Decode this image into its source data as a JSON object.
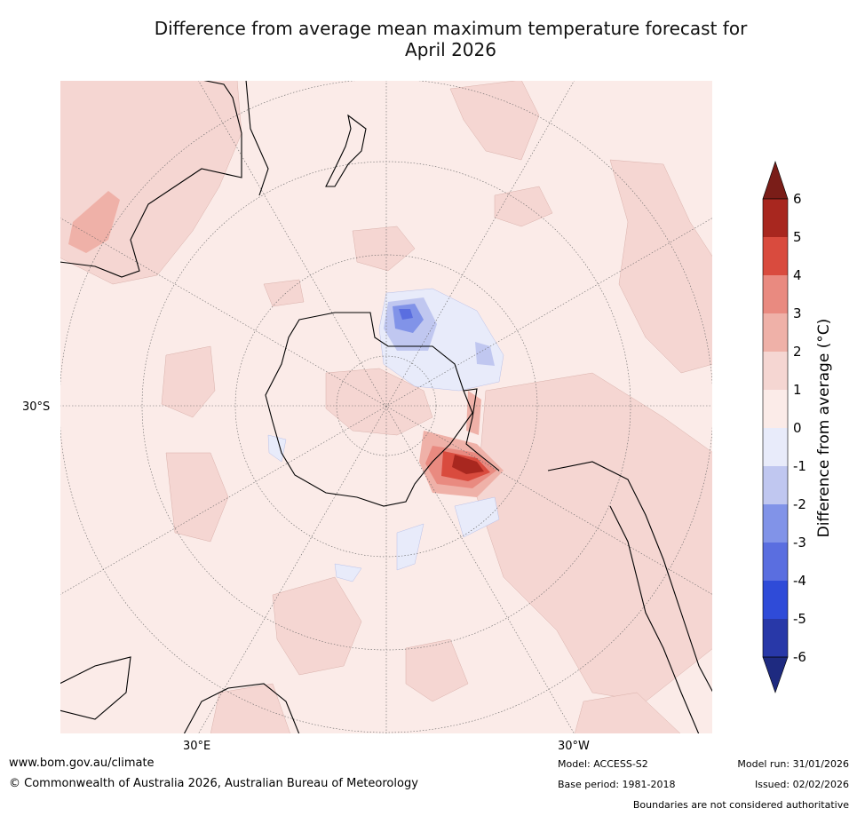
{
  "title": {
    "line1": "Difference from average mean maximum temperature forecast for",
    "line2": "April 2026"
  },
  "map": {
    "lat_label": "30°S",
    "lon_labels": {
      "east": "30°E",
      "west": "30°W"
    }
  },
  "colorbar": {
    "title": "Difference from average (°C)",
    "ticks": [
      "6",
      "5",
      "4",
      "3",
      "2",
      "1",
      "0",
      "-1",
      "-2",
      "-3",
      "-4",
      "-5",
      "-6"
    ],
    "colors": {
      "above6": "#7a1d18",
      "5to6": "#a8271f",
      "4to5": "#d94b3e",
      "3to4": "#e98a80",
      "2to3": "#efb1a8",
      "1to2": "#f5d6d2",
      "0to1": "#fbebe8",
      "m1to0": "#e8ebfa",
      "m2tom1": "#c0c7f0",
      "m3tom2": "#8193e8",
      "m4tom3": "#5a6ee0",
      "m5tom4": "#2f4bd8",
      "m6tom5": "#2838a8",
      "below_m6": "#1e2a80"
    }
  },
  "footer": {
    "website": "www.bom.gov.au/climate",
    "copyright": "© Commonwealth of Australia 2026, Australian Bureau of Meteorology",
    "model": "Model: ACCESS-S2",
    "base_period": "Base period: 1981-2018",
    "model_run": "Model run: 31/01/2026",
    "issued": "Issued: 02/02/2026",
    "disclaimer": "Boundaries are not considered authoritative"
  }
}
